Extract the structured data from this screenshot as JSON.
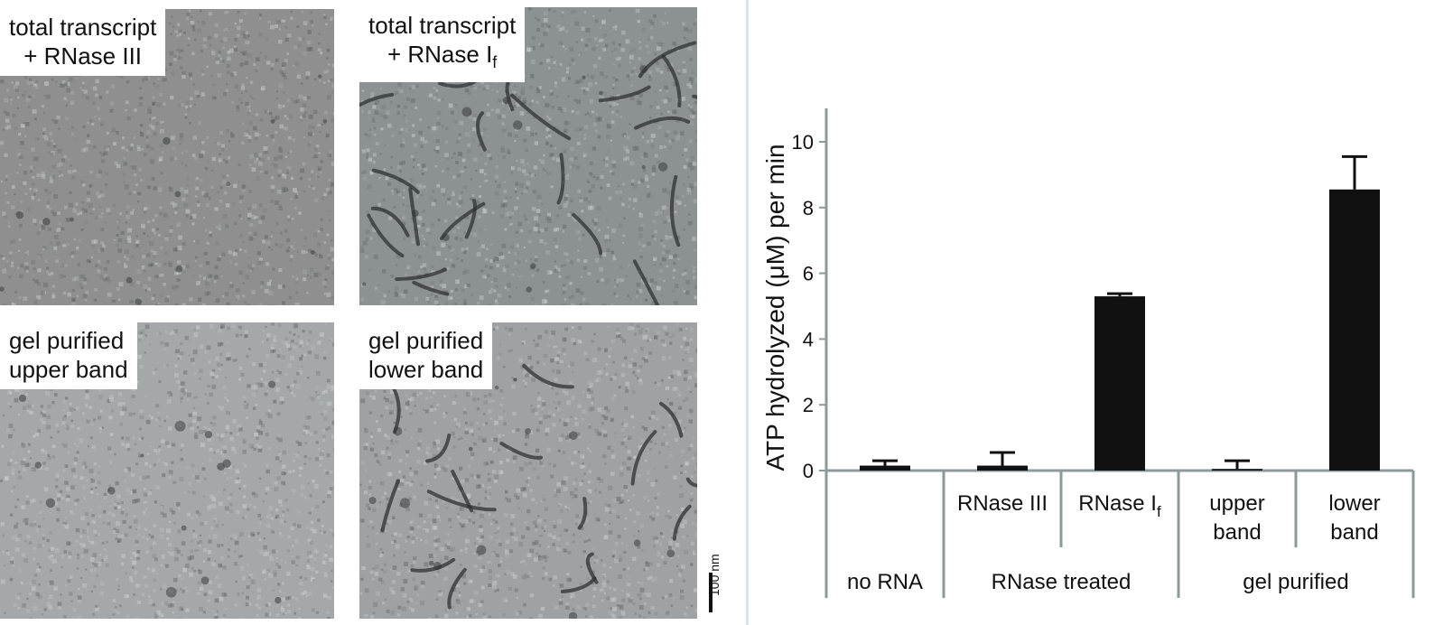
{
  "panels": [
    {
      "line1": "total transcript",
      "line2_prefix": "+ RNase III",
      "line2_sub": ""
    },
    {
      "line1": "total transcript",
      "line2_prefix": "+ RNase I",
      "line2_sub": "f"
    },
    {
      "line1": "gel purified",
      "line2_prefix": "upper band",
      "line2_sub": ""
    },
    {
      "line1": "gel purified",
      "line2_prefix": "lower band",
      "line2_sub": ""
    }
  ],
  "scale_bar": {
    "label": "100 nm"
  },
  "chart_data": {
    "type": "bar",
    "ylabel": "ATP hydrolyzed (μM) per min",
    "ylim": [
      0,
      10
    ],
    "yticks": [
      0,
      2,
      4,
      6,
      8,
      10
    ],
    "categories": [
      {
        "label": "",
        "label_sub": "",
        "value": 0.15,
        "error": 0.15
      },
      {
        "label": "RNase III",
        "label_sub": "",
        "value": 0.15,
        "error": 0.4
      },
      {
        "label": "RNase I",
        "label_sub": "f",
        "value": 5.3,
        "error": 0.08
      },
      {
        "label": "upper\nband",
        "label_sub": "",
        "value": 0.05,
        "error": 0.25
      },
      {
        "label": "lower\nband",
        "label_sub": "",
        "value": 8.55,
        "error": 1.0
      }
    ],
    "groups": [
      {
        "label": "no RNA",
        "span": [
          0,
          0
        ]
      },
      {
        "label": "RNase treated",
        "span": [
          1,
          2
        ]
      },
      {
        "label": "gel purified",
        "span": [
          3,
          4
        ]
      }
    ],
    "bar_color": "#111111",
    "axis_color": "#8c9a9a"
  }
}
